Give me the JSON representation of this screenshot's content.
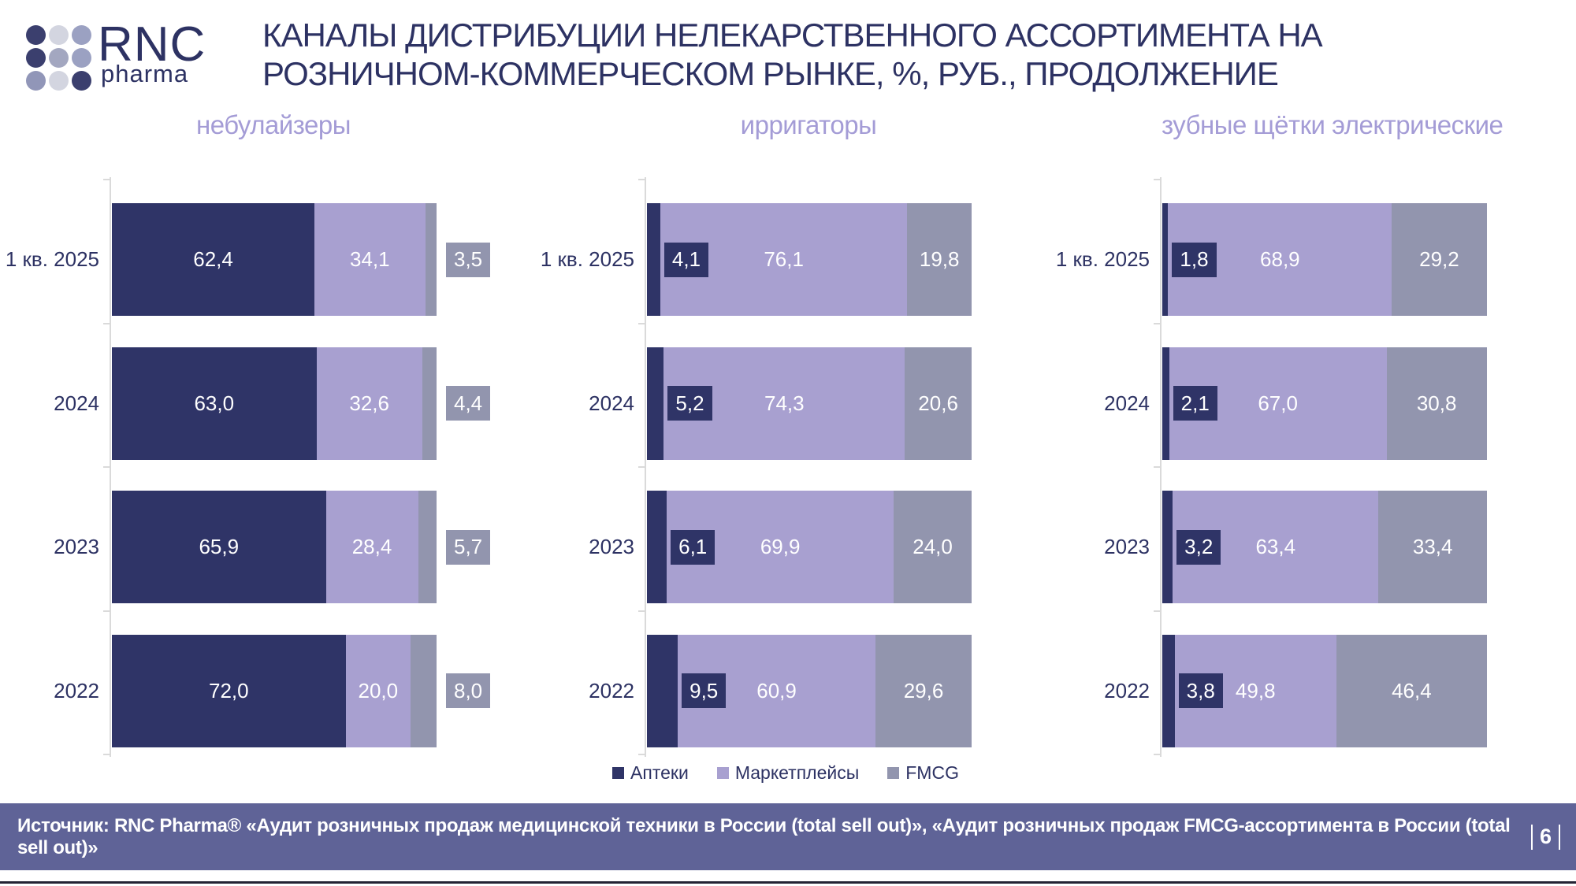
{
  "header": {
    "logo": {
      "brand": "RNC",
      "sub": "pharma",
      "dot_colors": [
        "#3b3f6e",
        "#d3d5e0",
        "#9ba1c2",
        "#3b3f6e",
        "#a3a7c0",
        "#9ba1c2",
        "#9196b8",
        "#d3d5e0",
        "#3b3f6e"
      ]
    },
    "title_line1": "КАНАЛЫ ДИСТРИБУЦИИ НЕЛЕКАРСТВЕННОГО АССОРТИМЕНТА НА",
    "title_line2": "РОЗНИЧНОМ-КОММЕРЧЕСКОМ РЫНКЕ, %, РУБ., ПРОДОЛЖЕНИЕ"
  },
  "legend": {
    "items": [
      {
        "label": "Аптеки",
        "color": "#2f3467"
      },
      {
        "label": "Маркетплейсы",
        "color": "#a8a0d0"
      },
      {
        "label": "FMCG",
        "color": "#9295ae"
      }
    ]
  },
  "chart_data": [
    {
      "type": "bar",
      "orientation": "horizontal_stacked_100pct",
      "title": "небулайзеры",
      "unit": "%",
      "categories": [
        "1 кв. 2025",
        "2024",
        "2023",
        "2022"
      ],
      "series": [
        {
          "name": "Аптеки",
          "values": [
            62.4,
            63.0,
            65.9,
            72.0
          ]
        },
        {
          "name": "Маркетплейсы",
          "values": [
            34.1,
            32.6,
            28.4,
            20.0
          ]
        },
        {
          "name": "FMCG",
          "values": [
            3.5,
            4.4,
            5.7,
            8.0
          ]
        }
      ],
      "xlim": [
        0,
        100
      ],
      "grid": false,
      "value_labels": "on-bars, comma decimal, small values shown as colored callout boxes"
    },
    {
      "type": "bar",
      "orientation": "horizontal_stacked_100pct",
      "title": "ирригаторы",
      "unit": "%",
      "categories": [
        "1 кв. 2025",
        "2024",
        "2023",
        "2022"
      ],
      "series": [
        {
          "name": "Аптеки",
          "values": [
            4.1,
            5.2,
            6.1,
            9.5
          ]
        },
        {
          "name": "Маркетплейсы",
          "values": [
            76.1,
            74.3,
            69.9,
            60.9
          ]
        },
        {
          "name": "FMCG",
          "values": [
            19.8,
            20.6,
            24.0,
            29.6
          ]
        }
      ],
      "xlim": [
        0,
        100
      ],
      "grid": false,
      "value_labels": "on-bars, comma decimal, small values shown as colored callout boxes"
    },
    {
      "type": "bar",
      "orientation": "horizontal_stacked_100pct",
      "title": "зубные щётки электрические",
      "unit": "%",
      "categories": [
        "1 кв. 2025",
        "2024",
        "2023",
        "2022"
      ],
      "series": [
        {
          "name": "Аптеки",
          "values": [
            1.8,
            2.1,
            3.2,
            3.8
          ]
        },
        {
          "name": "Маркетплейсы",
          "values": [
            68.9,
            67.0,
            63.4,
            49.8
          ]
        },
        {
          "name": "FMCG",
          "values": [
            29.2,
            30.8,
            33.4,
            46.4
          ]
        }
      ],
      "xlim": [
        0,
        100
      ],
      "grid": false,
      "value_labels": "on-bars, comma decimal, small values shown as colored callout boxes"
    }
  ],
  "footer": {
    "source": "Источник: RNC Pharma® «Аудит розничных продаж медицинской техники в России (total sell out)», «Аудит розничных продаж FMCG-ассортимента в России (total sell out)»",
    "page": "6"
  },
  "styles": {
    "accent_navy": "#2d3263",
    "chart_title_purple": "#a49cd6",
    "footer_bg": "#5f6397",
    "axis_color": "#dadada"
  }
}
